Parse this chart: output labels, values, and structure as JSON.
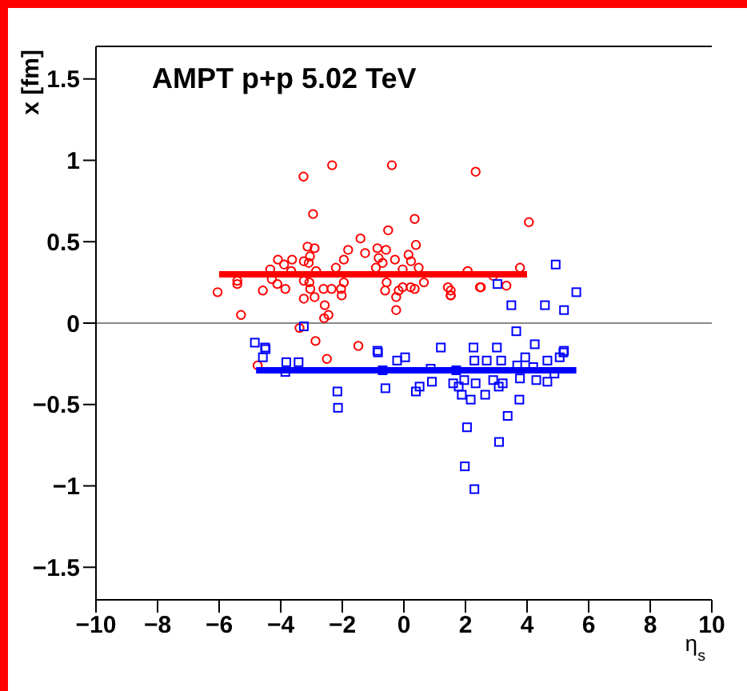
{
  "chart_data": {
    "type": "scatter",
    "title": "AMPT p+p 5.02 TeV",
    "xlabel": "η$_{s}$",
    "ylabel": "x [fm]",
    "xlim": [
      -10,
      10
    ],
    "xticks": [
      -10,
      -8,
      -6,
      -4,
      -2,
      0,
      2,
      4,
      6,
      8,
      10
    ],
    "ylim": [
      -1.7,
      1.7
    ],
    "yticks": [
      -1.5,
      -1,
      -0.5,
      0,
      0.5,
      1,
      1.5
    ],
    "legend": false,
    "ref_lines": [
      {
        "axis": "y",
        "value": 0,
        "color": "#888888"
      }
    ],
    "series": [
      {
        "color": "#ff0000",
        "marker": "circle",
        "x": [
          -2.33,
          -0.39,
          2.33,
          -3.26,
          -2.95,
          0.35,
          -0.51,
          -1.41,
          -3.13,
          -2.9,
          0.39,
          -1.81,
          -0.86,
          -0.58,
          -1.26,
          -3.05,
          -0.29,
          0.15,
          -0.82,
          -4.09,
          -3.63,
          -3.25,
          -3.89,
          -1.95,
          0.23,
          -0.69,
          -3.09,
          -2.21,
          -4.34,
          -3.66,
          -2.85,
          -0.91,
          -0.04,
          0.48,
          2.07,
          -5.41,
          -5.41,
          -4.29,
          -4.11,
          -3.25,
          -3.07,
          -1.95,
          -0.56,
          -0.04,
          0.22,
          0.65,
          1.43,
          2.47,
          -6.05,
          -4.58,
          -3.85,
          -3.04,
          -2.61,
          -2.35,
          -2.04,
          -0.61,
          -0.17,
          0.35,
          1.52,
          -3.25,
          -2.9,
          -2.02,
          -0.25,
          -2.57,
          -0.25,
          -5.29,
          -2.45,
          -2.59,
          -3.39,
          -2.87,
          -1.48,
          -2.5,
          -4.75,
          4.06,
          2.9,
          3.77,
          1.52,
          1.52,
          2.5,
          3.33
        ],
        "values": [
          0.97,
          0.97,
          0.93,
          0.9,
          0.67,
          0.64,
          0.57,
          0.52,
          0.47,
          0.46,
          0.48,
          0.45,
          0.46,
          0.45,
          0.43,
          0.41,
          0.39,
          0.42,
          0.4,
          0.39,
          0.39,
          0.38,
          0.36,
          0.39,
          0.38,
          0.37,
          0.37,
          0.34,
          0.33,
          0.32,
          0.32,
          0.34,
          0.33,
          0.34,
          0.32,
          0.26,
          0.24,
          0.27,
          0.24,
          0.26,
          0.25,
          0.25,
          0.25,
          0.22,
          0.22,
          0.25,
          0.22,
          0.22,
          0.19,
          0.2,
          0.21,
          0.21,
          0.21,
          0.21,
          0.21,
          0.2,
          0.2,
          0.21,
          0.17,
          0.15,
          0.16,
          0.17,
          0.16,
          0.11,
          0.08,
          0.05,
          0.05,
          0.03,
          -0.03,
          -0.11,
          -0.14,
          -0.22,
          -0.26,
          0.62,
          0.29,
          0.34,
          0.2,
          0.17,
          0.22,
          0.23
        ]
      },
      {
        "color": "#0000ff",
        "marker": "square",
        "x": [
          4.93,
          3.04,
          5.6,
          3.49,
          4.58,
          5.2,
          3.65,
          2.26,
          3.02,
          4.25,
          5.2,
          -3.25,
          -4.84,
          -4.51,
          -0.86,
          1.2,
          -4.49,
          -4.58,
          -3.82,
          -3.42,
          -3.85,
          -0.84,
          -0.22,
          0.04,
          2.29,
          2.69,
          3.16,
          0.87,
          1.7,
          -0.69,
          -2.16,
          -2.14,
          -0.6,
          0.39,
          0.51,
          0.91,
          1.6,
          1.78,
          1.96,
          2.33,
          1.88,
          2.17,
          2.64,
          2.9,
          3.08,
          3.21,
          3.37,
          2.05,
          3.09,
          1.98,
          2.29,
          3.94,
          4.66,
          5.06,
          5.18,
          3.68,
          4.2,
          4.89,
          3.77,
          4.3,
          4.66,
          3.75
        ],
        "values": [
          0.36,
          0.24,
          0.19,
          0.11,
          0.11,
          0.08,
          -0.05,
          -0.15,
          -0.15,
          -0.13,
          -0.17,
          -0.02,
          -0.12,
          -0.15,
          -0.17,
          -0.15,
          -0.16,
          -0.21,
          -0.24,
          -0.24,
          -0.3,
          -0.18,
          -0.23,
          -0.21,
          -0.23,
          -0.23,
          -0.23,
          -0.28,
          -0.29,
          -0.29,
          -0.42,
          -0.52,
          -0.4,
          -0.42,
          -0.39,
          -0.36,
          -0.37,
          -0.39,
          -0.35,
          -0.37,
          -0.44,
          -0.47,
          -0.44,
          -0.35,
          -0.39,
          -0.37,
          -0.57,
          -0.64,
          -0.73,
          -0.88,
          -1.02,
          -0.21,
          -0.23,
          -0.21,
          -0.18,
          -0.26,
          -0.27,
          -0.31,
          -0.34,
          -0.35,
          -0.36,
          -0.47
        ]
      },
      {
        "type": "line",
        "color": "#ff0000",
        "x": [
          -6,
          4
        ],
        "values": [
          0.3,
          0.3
        ]
      },
      {
        "type": "line",
        "color": "#0000ff",
        "x": [
          -4.8,
          5.6
        ],
        "values": [
          -0.29,
          -0.29
        ]
      }
    ]
  }
}
